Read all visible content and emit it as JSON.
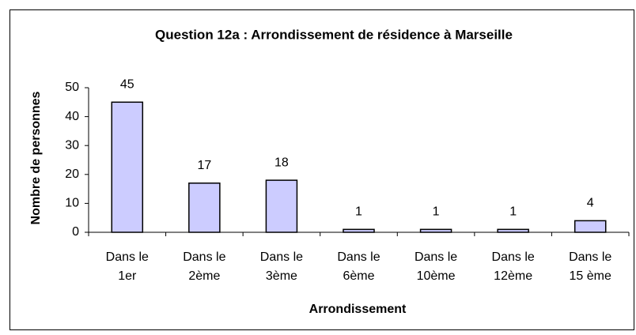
{
  "chart_data": {
    "type": "bar",
    "title": "Question 12a :  Arrondissement de résidence à Marseille",
    "x_label": "Arrondissement",
    "y_label": "Nombre de personnes",
    "categories": [
      [
        "Dans le",
        "1er"
      ],
      [
        "Dans le",
        "2ème"
      ],
      [
        "Dans le",
        "3ème"
      ],
      [
        "Dans le",
        "6ème"
      ],
      [
        "Dans le",
        "10ème"
      ],
      [
        "Dans le",
        "12ème"
      ],
      [
        "Dans le",
        "15 ème"
      ]
    ],
    "values": [
      45,
      17,
      18,
      1,
      1,
      1,
      4
    ],
    "color": "#ccccff",
    "ylim": [
      0,
      50
    ],
    "yticks": [
      0,
      10,
      20,
      30,
      40,
      50
    ],
    "grid": false
  }
}
